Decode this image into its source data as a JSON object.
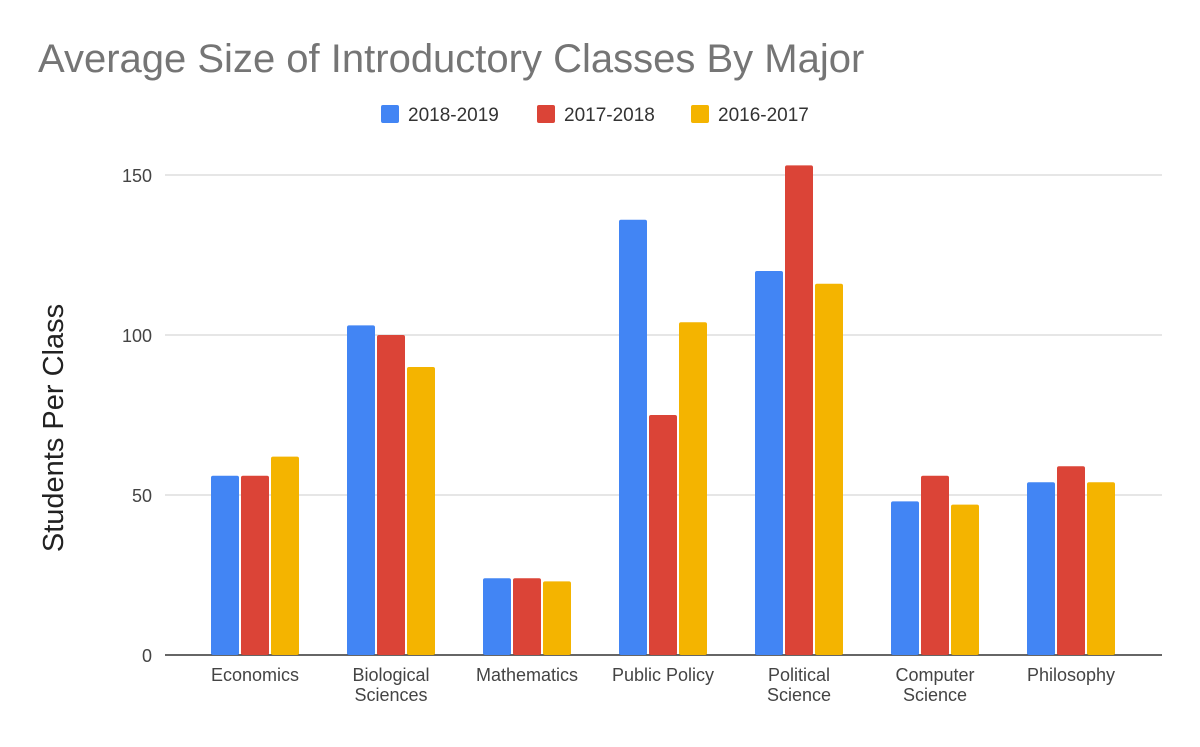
{
  "chart_data": {
    "type": "bar",
    "title": "Average Size of Introductory Classes By Major",
    "xlabel": "",
    "ylabel": "Students Per Class",
    "ylim": [
      0,
      160
    ],
    "yticks": [
      0,
      50,
      100,
      150
    ],
    "grid": true,
    "legend_position": "top",
    "categories": [
      [
        "Economics"
      ],
      [
        "Biological",
        "Sciences"
      ],
      [
        "Mathematics"
      ],
      [
        "Public Policy"
      ],
      [
        "Political",
        "Science"
      ],
      [
        "Computer",
        "Science"
      ],
      [
        "Philosophy"
      ]
    ],
    "series": [
      {
        "name": "2018-2019",
        "color": "#4285f4",
        "values": [
          56,
          103,
          24,
          136,
          120,
          48,
          54
        ]
      },
      {
        "name": "2017-2018",
        "color": "#db4437",
        "values": [
          56,
          100,
          24,
          75,
          153,
          56,
          59
        ]
      },
      {
        "name": "2016-2017",
        "color": "#f4b400",
        "values": [
          62,
          90,
          23,
          104,
          116,
          47,
          54
        ]
      }
    ]
  }
}
